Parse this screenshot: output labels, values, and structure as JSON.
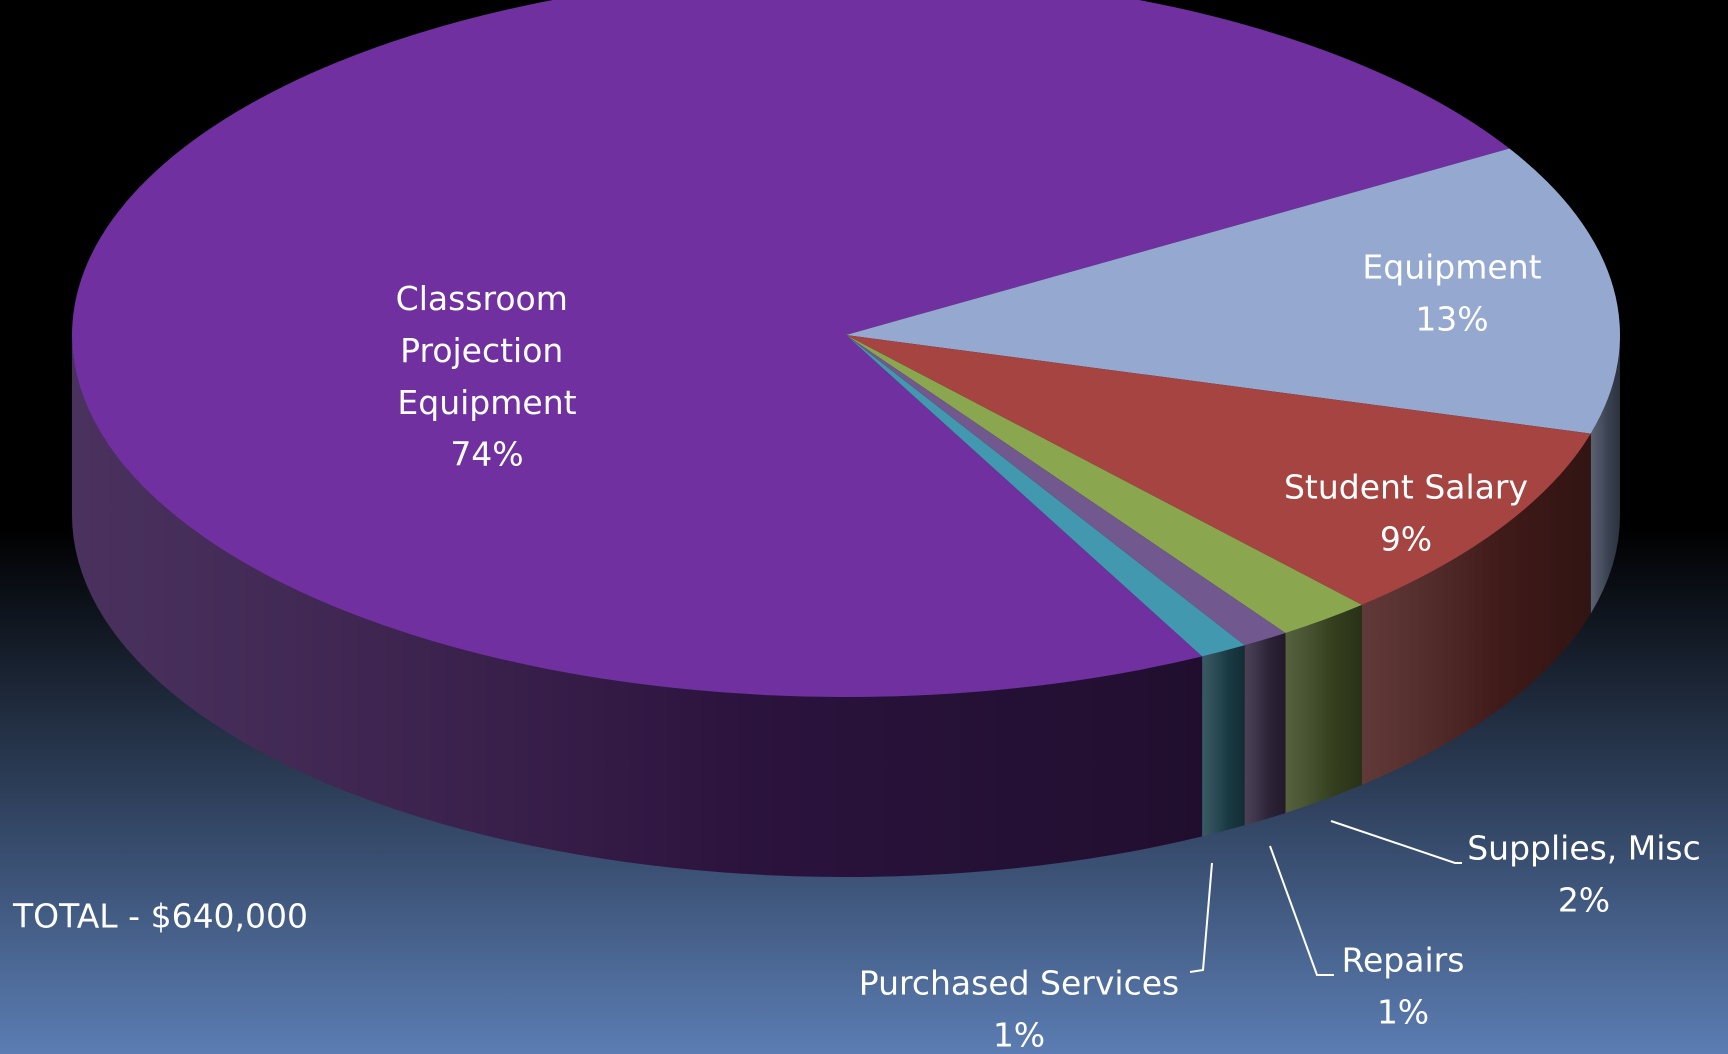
{
  "chart_data": {
    "type": "pie3d",
    "categories": [
      "Classroom Projection Equipment",
      "Equipment",
      "Student Salary",
      "Supplies, Misc",
      "Repairs",
      "Purchased Services"
    ],
    "values": [
      74,
      13,
      9,
      2,
      1,
      1
    ],
    "value_labels": [
      "74%",
      "13%",
      "9%",
      "2%",
      "1%",
      "1%"
    ],
    "colors": [
      "#7030a0",
      "#95a9d0",
      "#a64441",
      "#8aa64f",
      "#71588f",
      "#4298af"
    ],
    "annotation": "TOTAL - $640,000"
  }
}
